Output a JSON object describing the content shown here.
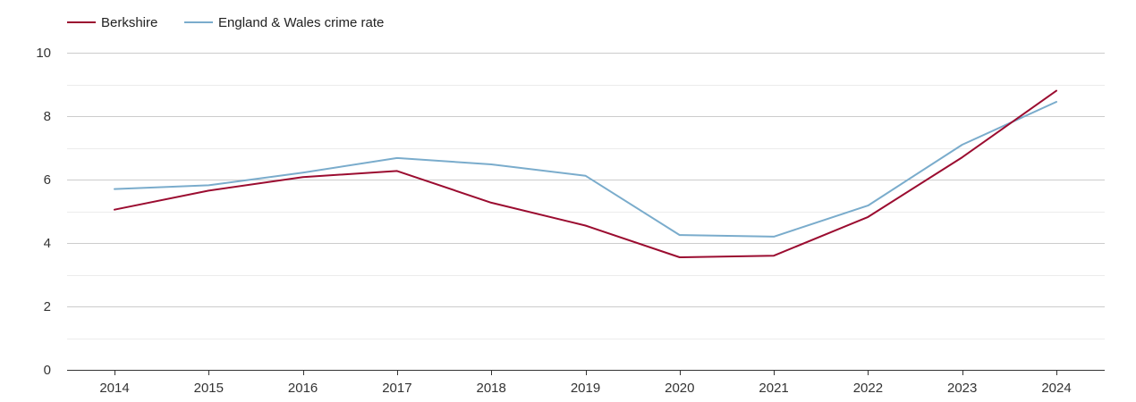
{
  "chart_data": {
    "type": "line",
    "title": "",
    "xlabel": "",
    "ylabel": "",
    "x": [
      "2014",
      "2015",
      "2016",
      "2017",
      "2018",
      "2019",
      "2020",
      "2021",
      "2022",
      "2023",
      "2024"
    ],
    "ylim": [
      0,
      10
    ],
    "yticks": [
      "0",
      "2",
      "4",
      "6",
      "8",
      "10"
    ],
    "grid": true,
    "legend_position": "top-left",
    "series": [
      {
        "name": "Berkshire",
        "color": "#9b0c30",
        "values": [
          5.05,
          5.65,
          6.08,
          6.27,
          5.27,
          4.55,
          3.55,
          3.6,
          4.82,
          6.7,
          8.8
        ]
      },
      {
        "name": "England & Wales crime rate",
        "color": "#7aaccc",
        "values": [
          5.7,
          5.82,
          6.22,
          6.68,
          6.48,
          6.12,
          4.25,
          4.2,
          5.18,
          7.1,
          8.45
        ]
      }
    ]
  }
}
